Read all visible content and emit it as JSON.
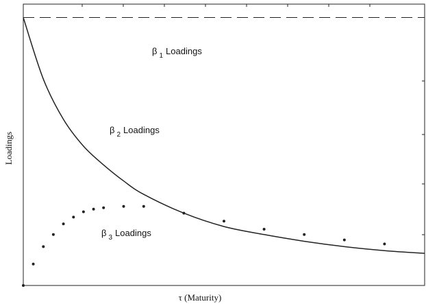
{
  "chart_data": {
    "type": "line",
    "title": "",
    "xlabel": "τ (Maturity)",
    "ylabel": "Loadings",
    "xlim": [
      0,
      120
    ],
    "ylim": [
      0,
      1.05
    ],
    "grid": false,
    "legend": "none",
    "series": [
      {
        "name": "β1 Loadings",
        "label_symbol": "β",
        "label_sub": "1",
        "label_text": "Loadings",
        "style": "dashed",
        "color": "#222222",
        "x": [
          0,
          120
        ],
        "y": [
          1.0,
          1.0
        ]
      },
      {
        "name": "β2 Loadings",
        "label_symbol": "β",
        "label_sub": "2",
        "label_text": "Loadings",
        "style": "solid",
        "color": "#222222",
        "x": [
          0,
          6,
          12,
          18,
          24,
          30,
          36,
          48,
          60,
          72,
          84,
          96,
          108,
          120
        ],
        "y": [
          1.0,
          0.77,
          0.62,
          0.52,
          0.45,
          0.39,
          0.34,
          0.27,
          0.22,
          0.19,
          0.165,
          0.145,
          0.13,
          0.12
        ]
      },
      {
        "name": "β3 Loadings",
        "label_symbol": "β",
        "label_sub": "3",
        "label_text": "Loadings",
        "style": "dots",
        "color": "#222222",
        "x": [
          0,
          3,
          6,
          9,
          12,
          15,
          18,
          21,
          24,
          30,
          36,
          48,
          60,
          72,
          84,
          96,
          108
        ],
        "y": [
          0.0,
          0.08,
          0.145,
          0.19,
          0.23,
          0.255,
          0.275,
          0.285,
          0.29,
          0.295,
          0.295,
          0.27,
          0.24,
          0.21,
          0.19,
          0.17,
          0.155
        ]
      }
    ]
  }
}
